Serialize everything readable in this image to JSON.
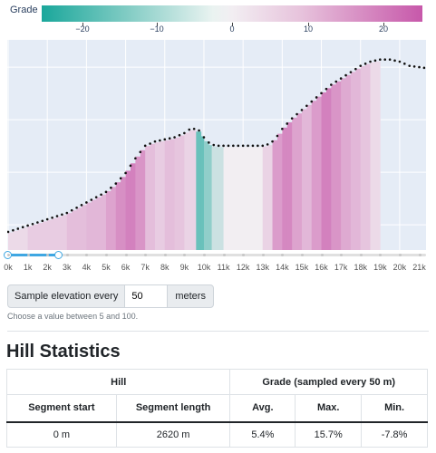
{
  "colorbar": {
    "title": "Grade",
    "ticks": [
      "−20",
      "−10",
      "0",
      "10",
      "20"
    ],
    "colors": {
      "min": "#1aa79b",
      "mid": "#f2eef2",
      "max": "#c758aa"
    }
  },
  "chart_data": {
    "type": "bar",
    "title": "",
    "xlabel": "",
    "ylabel": "",
    "x_tick_labels": [
      "0k",
      "1k",
      "2k",
      "3k",
      "4k",
      "5k",
      "6k",
      "7k",
      "8k",
      "9k",
      "10k",
      "11k",
      "12k",
      "13k",
      "14k",
      "15k",
      "16k",
      "17k",
      "18k",
      "19k",
      "20k",
      "21k"
    ],
    "xlim": [
      0,
      21300
    ],
    "ylim": [
      0,
      1
    ],
    "grid": true,
    "legend": "none",
    "elevation_profile_normalized": {
      "x": [
        0,
        1000,
        2000,
        3000,
        4000,
        5000,
        5500,
        6000,
        6500,
        7000,
        7500,
        8000,
        8500,
        9000,
        9300,
        9600,
        9800,
        10000,
        10300,
        10600,
        11000,
        12000,
        13000,
        13400,
        13700,
        14000,
        14500,
        15000,
        15500,
        16000,
        16500,
        17000,
        17500,
        18000,
        18500,
        19000,
        19500,
        20000,
        20500,
        21300
      ],
      "y": [
        0.08,
        0.11,
        0.14,
        0.17,
        0.22,
        0.27,
        0.31,
        0.36,
        0.43,
        0.49,
        0.51,
        0.52,
        0.53,
        0.55,
        0.57,
        0.57,
        0.56,
        0.53,
        0.5,
        0.49,
        0.49,
        0.49,
        0.49,
        0.5,
        0.53,
        0.57,
        0.62,
        0.66,
        0.7,
        0.74,
        0.78,
        0.81,
        0.84,
        0.87,
        0.89,
        0.9,
        0.9,
        0.89,
        0.87,
        0.86
      ]
    },
    "bar_grades": [
      {
        "from": 0,
        "to": 1000,
        "grade": 3
      },
      {
        "from": 1000,
        "to": 2000,
        "grade": 5
      },
      {
        "from": 2000,
        "to": 3000,
        "grade": 5
      },
      {
        "from": 3000,
        "to": 4000,
        "grade": 7
      },
      {
        "from": 4000,
        "to": 5000,
        "grade": 8
      },
      {
        "from": 5000,
        "to": 5500,
        "grade": 11
      },
      {
        "from": 5500,
        "to": 6000,
        "grade": 14
      },
      {
        "from": 6000,
        "to": 6500,
        "grade": 16
      },
      {
        "from": 6500,
        "to": 7000,
        "grade": 13
      },
      {
        "from": 7000,
        "to": 7500,
        "grade": 7
      },
      {
        "from": 7500,
        "to": 8000,
        "grade": 5
      },
      {
        "from": 8000,
        "to": 8500,
        "grade": 7
      },
      {
        "from": 8500,
        "to": 9000,
        "grade": 6
      },
      {
        "from": 9000,
        "to": 9600,
        "grade": 4
      },
      {
        "from": 9600,
        "to": 10000,
        "grade": -14
      },
      {
        "from": 10000,
        "to": 10400,
        "grade": -10
      },
      {
        "from": 10400,
        "to": 11000,
        "grade": -4
      },
      {
        "from": 11000,
        "to": 12000,
        "grade": 0
      },
      {
        "from": 12000,
        "to": 13000,
        "grade": 0
      },
      {
        "from": 13000,
        "to": 13500,
        "grade": 4
      },
      {
        "from": 13500,
        "to": 14000,
        "grade": 12
      },
      {
        "from": 14000,
        "to": 14500,
        "grade": 15
      },
      {
        "from": 14500,
        "to": 15000,
        "grade": 11
      },
      {
        "from": 15000,
        "to": 15500,
        "grade": 8
      },
      {
        "from": 15500,
        "to": 16000,
        "grade": 12
      },
      {
        "from": 16000,
        "to": 16500,
        "grade": 16
      },
      {
        "from": 16500,
        "to": 17000,
        "grade": 13
      },
      {
        "from": 17000,
        "to": 17500,
        "grade": 10
      },
      {
        "from": 17500,
        "to": 18000,
        "grade": 8
      },
      {
        "from": 18000,
        "to": 18500,
        "grade": 6
      },
      {
        "from": 18500,
        "to": 19000,
        "grade": 3
      }
    ],
    "range_slider": {
      "start": 0,
      "end": 2620
    }
  },
  "sample": {
    "prefix": "Sample elevation every",
    "value": "50",
    "suffix": "meters",
    "help": "Choose a value between 5 and 100."
  },
  "stats": {
    "heading": "Hill Statistics",
    "group_hill": "Hill",
    "group_grade": "Grade (sampled every 50 m)",
    "columns": [
      "Segment start",
      "Segment length",
      "Avg.",
      "Max.",
      "Min."
    ],
    "rows": [
      [
        "0 m",
        "2620 m",
        "5.4%",
        "15.7%",
        "-7.8%"
      ]
    ]
  }
}
